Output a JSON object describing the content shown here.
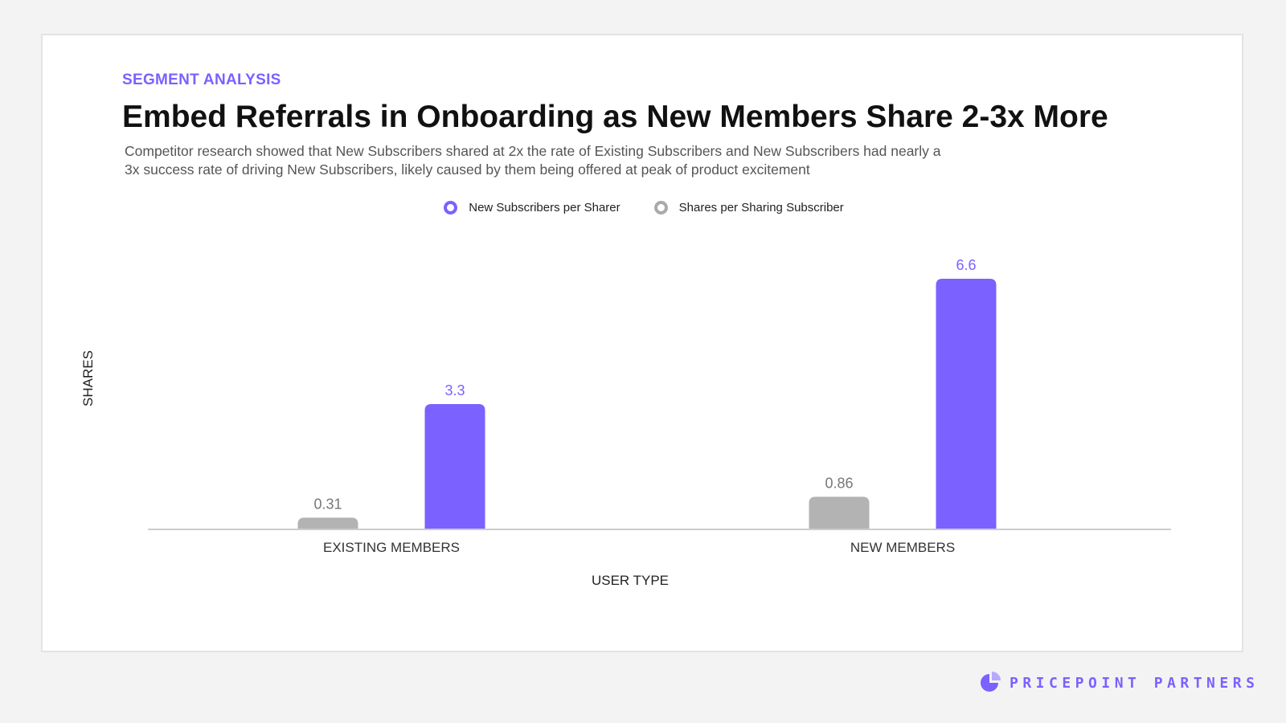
{
  "header": {
    "eyebrow": "SEGMENT ANALYSIS",
    "title": "Embed Referrals in Onboarding as New Members Share 2-3x More",
    "subtitle_line1": "Competitor research showed that New Subscribers shared at 2x the rate of Existing Subscribers and New Subscribers had nearly a",
    "subtitle_line2": "3x success rate of driving New Subscribers, likely caused by them being offered at peak of product excitement"
  },
  "chart_data": {
    "type": "bar",
    "title": "Embed Referrals in Onboarding as New Members Share 2-3x More",
    "xlabel": "USER TYPE",
    "ylabel": "SHARES",
    "categories": [
      "EXISTING MEMBERS",
      "NEW MEMBERS"
    ],
    "series": [
      {
        "name": "Shares per Sharing Subscriber",
        "values": [
          0.31,
          0.86
        ],
        "labels": [
          "0.31",
          "0.86"
        ],
        "color": "#b3b3b3"
      },
      {
        "name": "New Subscribers per Sharer",
        "values": [
          3.3,
          6.6
        ],
        "labels": [
          "3.3",
          "6.6"
        ],
        "color": "#7b61ff"
      }
    ],
    "ylim": [
      0,
      7
    ],
    "grid": false,
    "legend": "top-center",
    "legend_order": [
      "New Subscribers per Sharer",
      "Shares per Sharing Subscriber"
    ]
  },
  "brand": {
    "name": "PRICEPOINT PARTNERS",
    "color": "#7b61ff",
    "icon": "pie-logo-icon"
  }
}
